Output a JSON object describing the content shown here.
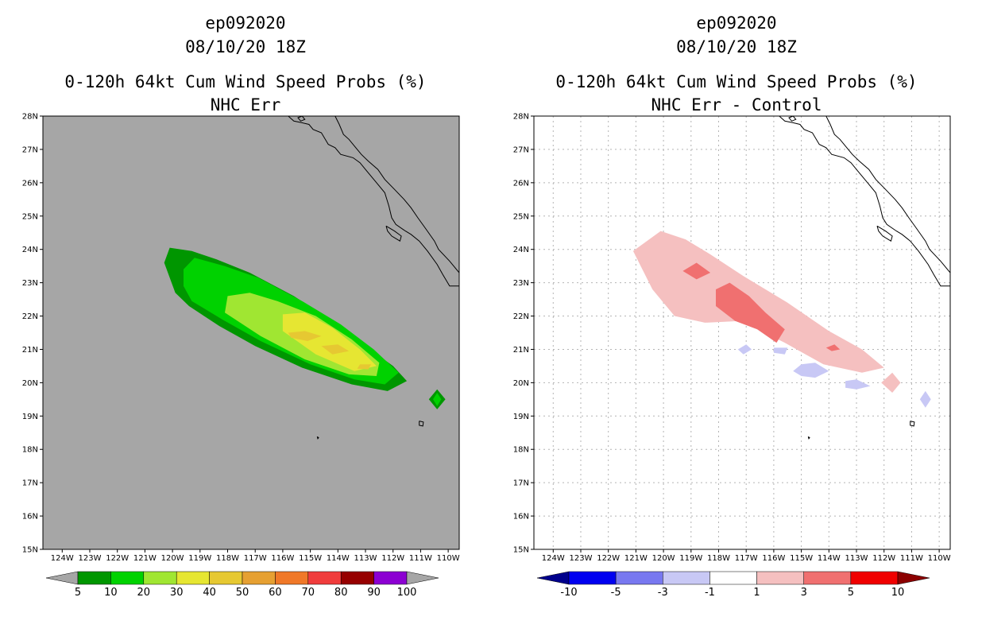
{
  "storm_id": "ep092020",
  "panels": [
    {
      "title_lines": [
        "ep092020",
        "08/10/20 18Z",
        "0-120h 64kt Cum Wind Speed Probs (%)",
        "NHC Err"
      ]
    },
    {
      "title_lines": [
        "ep092020",
        "08/10/20 18Z",
        "0-120h 64kt Cum Wind Speed Probs (%)",
        "NHC Err - Control"
      ]
    }
  ],
  "chart_data": [
    {
      "type": "contour-map",
      "title": "0-120h 64kt Cum Wind Speed Probs (%)",
      "subtitle": "NHC Err",
      "background_color": "#a6a6a6",
      "xlim": [
        -124.7,
        -109.6
      ],
      "ylim": [
        15,
        28
      ],
      "x_tick_labels": [
        "124W",
        "123W",
        "122W",
        "121W",
        "120W",
        "119W",
        "118W",
        "117W",
        "116W",
        "115W",
        "114W",
        "113W",
        "112W",
        "111W",
        "110W"
      ],
      "y_tick_labels": [
        "15N",
        "16N",
        "17N",
        "18N",
        "19N",
        "20N",
        "21N",
        "22N",
        "23N",
        "24N",
        "25N",
        "26N",
        "27N",
        "28N"
      ],
      "grid": false,
      "colorbar": {
        "levels": [
          "5",
          "10",
          "20",
          "30",
          "40",
          "50",
          "60",
          "70",
          "80",
          "90",
          "100"
        ],
        "colors": [
          "#a6a6a6",
          "#009600",
          "#00d200",
          "#a0e632",
          "#e6e632",
          "#e6c832",
          "#e6a032",
          "#f07828",
          "#f03c3c",
          "#960000",
          "#8c00d2",
          "#a6a6a6"
        ]
      },
      "regions": [
        {
          "level": "5-10",
          "color": "#009600",
          "points": [
            [
              -120.3,
              23.6
            ],
            [
              -120.1,
              24.05
            ],
            [
              -119.3,
              23.95
            ],
            [
              -118.4,
              23.7
            ],
            [
              -117.2,
              23.3
            ],
            [
              -115.6,
              22.6
            ],
            [
              -114.2,
              21.85
            ],
            [
              -113.0,
              21.1
            ],
            [
              -112.0,
              20.5
            ],
            [
              -111.5,
              20.05
            ],
            [
              -112.2,
              19.75
            ],
            [
              -113.5,
              19.95
            ],
            [
              -115.3,
              20.45
            ],
            [
              -117.0,
              21.1
            ],
            [
              -118.3,
              21.7
            ],
            [
              -119.4,
              22.3
            ],
            [
              -119.9,
              22.7
            ]
          ]
        },
        {
          "level": "5-10",
          "color": "#009600",
          "points": [
            [
              -110.4,
              19.8
            ],
            [
              -110.1,
              19.5
            ],
            [
              -110.4,
              19.2
            ],
            [
              -110.7,
              19.5
            ]
          ]
        },
        {
          "level": "10-20",
          "color": "#00d200",
          "points": [
            [
              -119.6,
              23.4
            ],
            [
              -119.2,
              23.75
            ],
            [
              -118.1,
              23.5
            ],
            [
              -116.9,
              23.15
            ],
            [
              -115.3,
              22.45
            ],
            [
              -113.9,
              21.75
            ],
            [
              -112.7,
              21.0
            ],
            [
              -111.8,
              20.3
            ],
            [
              -112.3,
              19.95
            ],
            [
              -113.4,
              20.1
            ],
            [
              -115.0,
              20.55
            ],
            [
              -116.8,
              21.25
            ],
            [
              -118.2,
              21.9
            ],
            [
              -119.3,
              22.45
            ],
            [
              -119.6,
              22.9
            ]
          ]
        },
        {
          "level": "10-20",
          "color": "#00d200",
          "points": [
            [
              -110.4,
              19.7
            ],
            [
              -110.25,
              19.5
            ],
            [
              -110.4,
              19.3
            ],
            [
              -110.55,
              19.5
            ]
          ]
        },
        {
          "level": "20-30",
          "color": "#a0e632",
          "points": [
            [
              -118.0,
              22.6
            ],
            [
              -117.2,
              22.7
            ],
            [
              -116.2,
              22.45
            ],
            [
              -114.8,
              22.0
            ],
            [
              -113.5,
              21.3
            ],
            [
              -112.5,
              20.6
            ],
            [
              -112.6,
              20.2
            ],
            [
              -113.6,
              20.25
            ],
            [
              -115.2,
              20.7
            ],
            [
              -116.8,
              21.4
            ],
            [
              -118.1,
              22.1
            ]
          ]
        },
        {
          "level": "30-40",
          "color": "#e6e632",
          "points": [
            [
              -116.0,
              22.05
            ],
            [
              -115.2,
              22.1
            ],
            [
              -114.2,
              21.65
            ],
            [
              -113.2,
              21.0
            ],
            [
              -112.6,
              20.5
            ],
            [
              -113.4,
              20.35
            ],
            [
              -114.8,
              20.85
            ],
            [
              -116.0,
              21.55
            ]
          ]
        },
        {
          "level": "40-50",
          "color": "#e6c832",
          "points": [
            [
              -115.8,
              21.5
            ],
            [
              -115.2,
              21.55
            ],
            [
              -114.6,
              21.4
            ],
            [
              -115.1,
              21.25
            ],
            [
              -115.7,
              21.35
            ]
          ]
        },
        {
          "level": "40-50",
          "color": "#e6c832",
          "points": [
            [
              -114.6,
              21.1
            ],
            [
              -114.0,
              21.15
            ],
            [
              -113.6,
              20.95
            ],
            [
              -114.2,
              20.85
            ]
          ]
        },
        {
          "level": "40-50",
          "color": "#e6c832",
          "points": [
            [
              -113.2,
              20.55
            ],
            [
              -112.8,
              20.55
            ],
            [
              -112.9,
              20.4
            ],
            [
              -113.3,
              20.42
            ]
          ]
        }
      ]
    },
    {
      "type": "contour-map",
      "title": "0-120h 64kt Cum Wind Speed Probs (%)",
      "subtitle": "NHC Err - Control",
      "background_color": "#ffffff",
      "xlim": [
        -124.7,
        -109.6
      ],
      "ylim": [
        15,
        28
      ],
      "x_tick_labels": [
        "124W",
        "123W",
        "122W",
        "121W",
        "120W",
        "119W",
        "118W",
        "117W",
        "116W",
        "115W",
        "114W",
        "113W",
        "112W",
        "111W",
        "110W"
      ],
      "y_tick_labels": [
        "15N",
        "16N",
        "17N",
        "18N",
        "19N",
        "20N",
        "21N",
        "22N",
        "23N",
        "24N",
        "25N",
        "26N",
        "27N",
        "28N"
      ],
      "grid": true,
      "colorbar": {
        "levels": [
          "-10",
          "-5",
          "-3",
          "-1",
          "1",
          "3",
          "5",
          "10"
        ],
        "colors": [
          "#00008c",
          "#0000f0",
          "#7878f0",
          "#c8c8f5",
          "#ffffff",
          "#f5c0c0",
          "#f07070",
          "#f00000",
          "#8c0000"
        ]
      },
      "regions": [
        {
          "level": "1-3",
          "color": "#f5c0c0",
          "points": [
            [
              -121.1,
              23.95
            ],
            [
              -120.1,
              24.55
            ],
            [
              -119.2,
              24.3
            ],
            [
              -118.3,
              23.85
            ],
            [
              -117.1,
              23.2
            ],
            [
              -115.5,
              22.4
            ],
            [
              -114.0,
              21.55
            ],
            [
              -112.8,
              21.0
            ],
            [
              -112.0,
              20.45
            ],
            [
              -112.8,
              20.3
            ],
            [
              -114.2,
              20.55
            ],
            [
              -115.6,
              21.2
            ],
            [
              -117.2,
              21.85
            ],
            [
              -118.5,
              21.8
            ],
            [
              -119.6,
              22.0
            ],
            [
              -120.4,
              22.8
            ]
          ]
        },
        {
          "level": "1-3",
          "color": "#f5c0c0",
          "points": [
            [
              -111.7,
              20.3
            ],
            [
              -111.4,
              20.0
            ],
            [
              -111.7,
              19.7
            ],
            [
              -112.1,
              20.0
            ]
          ]
        },
        {
          "level": "3-5",
          "color": "#f07070",
          "points": [
            [
              -119.3,
              23.35
            ],
            [
              -118.8,
              23.6
            ],
            [
              -118.3,
              23.3
            ],
            [
              -118.8,
              23.1
            ]
          ]
        },
        {
          "level": "3-5",
          "color": "#f07070",
          "points": [
            [
              -118.1,
              22.8
            ],
            [
              -117.6,
              23.0
            ],
            [
              -116.9,
              22.6
            ],
            [
              -116.3,
              22.1
            ],
            [
              -115.6,
              21.6
            ],
            [
              -115.9,
              21.2
            ],
            [
              -116.6,
              21.6
            ],
            [
              -117.4,
              21.85
            ],
            [
              -118.1,
              22.3
            ]
          ]
        },
        {
          "level": "3-5",
          "color": "#f07070",
          "points": [
            [
              -114.1,
              21.05
            ],
            [
              -113.8,
              21.15
            ],
            [
              -113.6,
              21.0
            ],
            [
              -113.9,
              20.95
            ]
          ]
        },
        {
          "level": "-3--1",
          "color": "#c8c8f5",
          "points": [
            [
              -117.3,
              21.0
            ],
            [
              -117.0,
              21.15
            ],
            [
              -116.8,
              21.0
            ],
            [
              -117.1,
              20.85
            ]
          ]
        },
        {
          "level": "-3--1",
          "color": "#c8c8f5",
          "points": [
            [
              -116.0,
              21.05
            ],
            [
              -115.5,
              21.05
            ],
            [
              -115.6,
              20.85
            ],
            [
              -116.0,
              20.9
            ]
          ]
        },
        {
          "level": "-3--1",
          "color": "#c8c8f5",
          "points": [
            [
              -115.0,
              20.55
            ],
            [
              -114.5,
              20.6
            ],
            [
              -114.0,
              20.35
            ],
            [
              -114.5,
              20.15
            ],
            [
              -115.0,
              20.2
            ],
            [
              -115.3,
              20.35
            ]
          ]
        },
        {
          "level": "-3--1",
          "color": "#c8c8f5",
          "points": [
            [
              -113.4,
              20.05
            ],
            [
              -113.0,
              20.1
            ],
            [
              -112.5,
              19.9
            ],
            [
              -113.0,
              19.8
            ],
            [
              -113.4,
              19.85
            ]
          ]
        },
        {
          "level": "-3--1",
          "color": "#c8c8f5",
          "points": [
            [
              -110.5,
              19.75
            ],
            [
              -110.3,
              19.5
            ],
            [
              -110.5,
              19.25
            ],
            [
              -110.7,
              19.5
            ]
          ]
        }
      ]
    }
  ]
}
